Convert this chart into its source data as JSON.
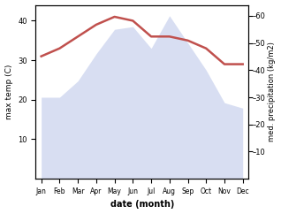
{
  "months": [
    "Jan",
    "Feb",
    "Mar",
    "Apr",
    "May",
    "Jun",
    "Jul",
    "Aug",
    "Sep",
    "Oct",
    "Nov",
    "Dec"
  ],
  "temperature": [
    31,
    33,
    36,
    39,
    41,
    40,
    36,
    36,
    35,
    33,
    29,
    29
  ],
  "precipitation": [
    30,
    30,
    36,
    46,
    55,
    56,
    48,
    60,
    50,
    40,
    28,
    26
  ],
  "temp_color": "#c0504d",
  "precip_fill_color": "#b8c4e8",
  "precip_edge_color": "#8899cc",
  "ylabel_left": "max temp (C)",
  "ylabel_right": "med. precipitation (kg/m2)",
  "xlabel": "date (month)",
  "ylim_left": [
    0,
    44
  ],
  "ylim_right": [
    0,
    64
  ],
  "yticks_left": [
    10,
    20,
    30,
    40
  ],
  "yticks_right": [
    10,
    20,
    30,
    40,
    50,
    60
  ],
  "bg_color": "#ffffff",
  "temp_linewidth": 1.8,
  "precip_alpha": 0.55
}
